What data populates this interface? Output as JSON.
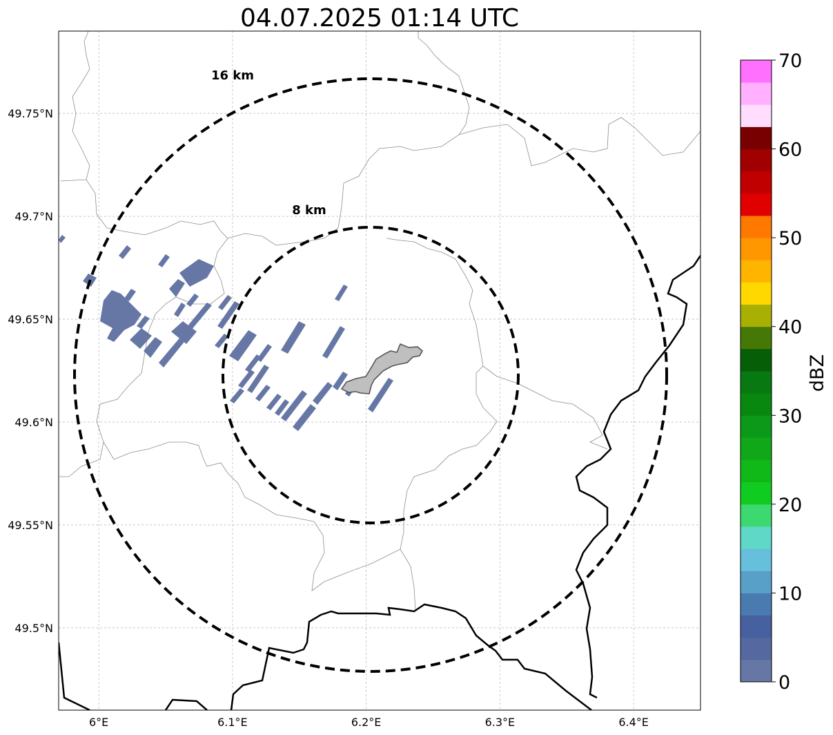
{
  "title": "04.07.2025 01:14 UTC",
  "map": {
    "lon_range": [
      5.97,
      6.45
    ],
    "lat_range": [
      49.46,
      49.79
    ],
    "lon_ticks": [
      {
        "value": 6.0,
        "label": "6°E"
      },
      {
        "value": 6.1,
        "label": "6.1°E"
      },
      {
        "value": 6.2,
        "label": "6.2°E"
      },
      {
        "value": 6.3,
        "label": "6.3°E"
      },
      {
        "value": 6.4,
        "label": "6.4°E"
      }
    ],
    "lat_ticks": [
      {
        "value": 49.75,
        "label": "49.75°N"
      },
      {
        "value": 49.7,
        "label": "49.7°N"
      },
      {
        "value": 49.65,
        "label": "49.65°N"
      },
      {
        "value": 49.6,
        "label": "49.6°N"
      },
      {
        "value": 49.55,
        "label": "49.55°N"
      },
      {
        "value": 49.5,
        "label": "49.5°N"
      }
    ],
    "gridlines": true,
    "center": {
      "lon": 6.204,
      "lat": 49.623
    },
    "rings": [
      {
        "radius_km": 8,
        "label": "8 km"
      },
      {
        "radius_km": 16,
        "label": "16 km"
      }
    ],
    "colors": {
      "echo": "#6677a6",
      "city": "#bfbfbf",
      "ring": "#000000",
      "admin": "#8c8c8c",
      "border": "#000000"
    }
  },
  "colorbar": {
    "label": "dBZ",
    "min": 0,
    "max": 70,
    "step": 2.5,
    "ticks": [
      {
        "value": 0,
        "label": "0"
      },
      {
        "value": 10,
        "label": "10"
      },
      {
        "value": 20,
        "label": "20"
      },
      {
        "value": 30,
        "label": "30"
      },
      {
        "value": 40,
        "label": "40"
      },
      {
        "value": 50,
        "label": "50"
      },
      {
        "value": 60,
        "label": "60"
      },
      {
        "value": 70,
        "label": "70"
      }
    ],
    "colors": [
      "#6677a6",
      "#5569a0",
      "#4660a0",
      "#4a7bb0",
      "#58a0c8",
      "#66c0dc",
      "#60d8c8",
      "#3cd870",
      "#10cc20",
      "#10b818",
      "#10a818",
      "#0c9818",
      "#08880e",
      "#087810",
      "#065e06",
      "#467806",
      "#a8b004",
      "#ffd800",
      "#ffb400",
      "#ff9800",
      "#ff7800",
      "#e00000",
      "#c00000",
      "#a00000",
      "#780000",
      "#ffddff",
      "#ffb0ff",
      "#ff70ff",
      "#f030f0"
    ]
  }
}
